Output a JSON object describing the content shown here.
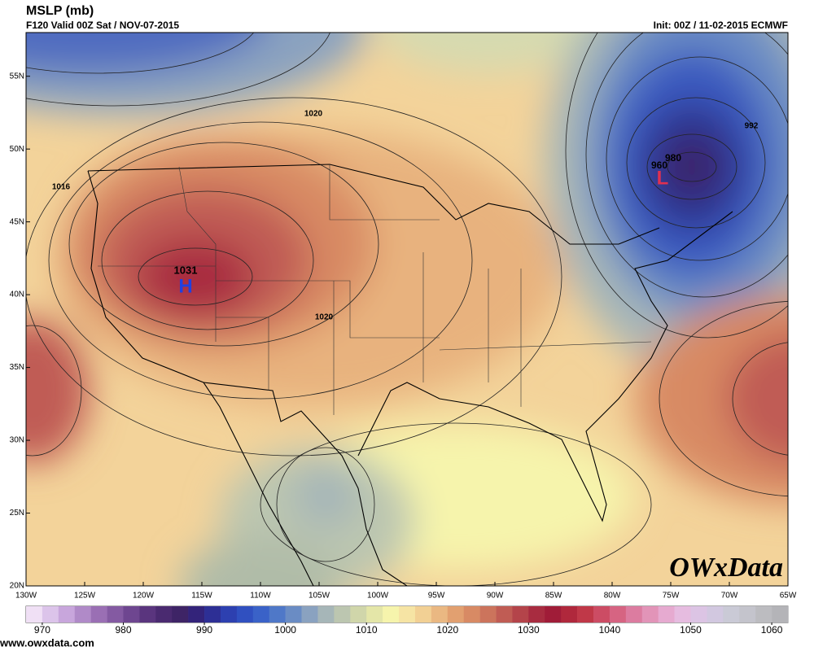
{
  "header": {
    "title": "MSLP (mb)",
    "valid": "F120 Valid 00Z Sat / NOV-07-2015",
    "init": "Init: 00Z / 11-02-2015 ECMWF"
  },
  "map": {
    "lonlim": [
      -130,
      -65
    ],
    "latlim": [
      20,
      58
    ],
    "lonticks": [
      {
        "value": -130,
        "label": "130W"
      },
      {
        "value": -125,
        "label": "125W"
      },
      {
        "value": -120,
        "label": "120W"
      },
      {
        "value": -115,
        "label": "115W"
      },
      {
        "value": -110,
        "label": "110W"
      },
      {
        "value": -105,
        "label": "105W"
      },
      {
        "value": -100,
        "label": "100W"
      },
      {
        "value": -95,
        "label": "95W"
      },
      {
        "value": -90,
        "label": "90W"
      },
      {
        "value": -85,
        "label": "85W"
      },
      {
        "value": -80,
        "label": "80W"
      },
      {
        "value": -75,
        "label": "75W"
      },
      {
        "value": -70,
        "label": "70W"
      },
      {
        "value": -65,
        "label": "65W"
      }
    ],
    "latticks": [
      {
        "value": 20,
        "label": "20N"
      },
      {
        "value": 25,
        "label": "25N"
      },
      {
        "value": 30,
        "label": "30N"
      },
      {
        "value": 35,
        "label": "35N"
      },
      {
        "value": 40,
        "label": "40N"
      },
      {
        "value": 45,
        "label": "45N"
      },
      {
        "value": 50,
        "label": "50N"
      },
      {
        "value": 55,
        "label": "55N"
      }
    ],
    "labels": [
      "1020",
      "1016",
      "1020",
      "1031",
      "H",
      "980",
      "960",
      "992",
      "L"
    ],
    "logo": "OWxData"
  },
  "colorbar": {
    "lim": [
      968,
      1062
    ],
    "ticks": [
      970,
      980,
      990,
      1000,
      1010,
      1020,
      1030,
      1040,
      1050,
      1060
    ],
    "colors": [
      "#f0e0f5",
      "#dcc4ea",
      "#c8a6dc",
      "#b08ac8",
      "#9a6fb4",
      "#845aa2",
      "#6e4690",
      "#5a357e",
      "#4a2a70",
      "#3e2466",
      "#33237a",
      "#2d2f95",
      "#2d40b0",
      "#3050c0",
      "#3a62c8",
      "#4f78c8",
      "#6a8cc4",
      "#8aa2c0",
      "#a6b6b8",
      "#bcc6b0",
      "#d0d6aa",
      "#e4e6a8",
      "#f6f4ac",
      "#f6e4a4",
      "#f2d094",
      "#eab882",
      "#e2a070",
      "#d88a64",
      "#cc745c",
      "#c05c54",
      "#b4444a",
      "#a82c40",
      "#a01c38",
      "#b0283c",
      "#c03848",
      "#cc4c64",
      "#d66482",
      "#dc7ca0",
      "#e294b8",
      "#e6aad0",
      "#e6bce0",
      "#dcc4e4",
      "#d2c8e0",
      "#cacad6",
      "#c4c4cc",
      "#bcbcc0",
      "#b4b4b8"
    ]
  },
  "footer": "www.owxdata.com"
}
